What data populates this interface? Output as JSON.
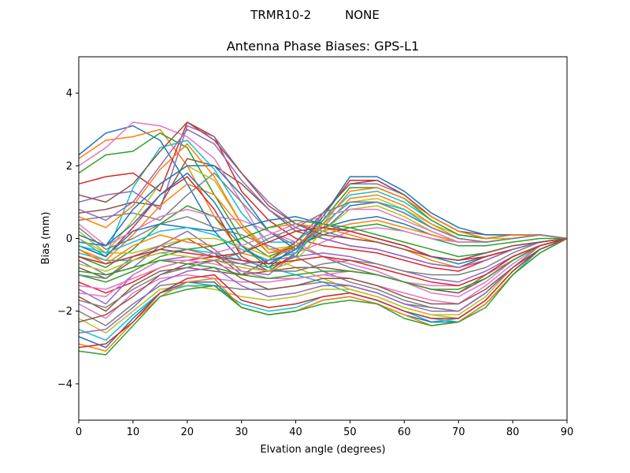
{
  "figure": {
    "suptitle": "TRMR10-2         NONE"
  },
  "chart_data": {
    "type": "line",
    "title": "Antenna Phase Biases: GPS-L1",
    "xlabel": "Elvation angle (degrees)",
    "ylabel": "Bias (mm)",
    "xlim": [
      0,
      90
    ],
    "ylim": [
      -5,
      5
    ],
    "xticks": [
      0,
      10,
      20,
      30,
      40,
      50,
      60,
      70,
      80,
      90
    ],
    "yticks": [
      -4,
      -2,
      0,
      2,
      4
    ],
    "grid": false,
    "legend": "none",
    "x": [
      0,
      5,
      10,
      15,
      20,
      25,
      30,
      35,
      40,
      45,
      50,
      55,
      60,
      65,
      70,
      75,
      80,
      85,
      90
    ],
    "colors": [
      "#1f77b4",
      "#ff7f0e",
      "#2ca02c",
      "#d62728",
      "#9467bd",
      "#8c564b",
      "#e377c2",
      "#7f7f7f",
      "#bcbd22",
      "#17becf"
    ],
    "series": [
      {
        "values": [
          2.3,
          2.9,
          3.1,
          2.7,
          1.5,
          0.2,
          -0.6,
          -0.8,
          -0.2,
          0.3,
          0.5,
          0.6,
          0.4,
          0.1,
          -0.1,
          -0.1,
          0.0,
          0.1,
          0.0
        ]
      },
      {
        "values": [
          2.2,
          2.7,
          2.8,
          3.0,
          2.0,
          0.6,
          -0.4,
          -0.6,
          -0.2,
          0.2,
          0.4,
          0.5,
          0.3,
          0.1,
          -0.1,
          -0.1,
          0.0,
          0.1,
          0.0
        ]
      },
      {
        "values": [
          1.8,
          2.3,
          2.4,
          2.9,
          2.5,
          1.2,
          0.0,
          -0.5,
          -0.2,
          0.1,
          0.3,
          0.4,
          0.2,
          0.0,
          -0.2,
          -0.2,
          -0.1,
          0.0,
          0.0
        ]
      },
      {
        "values": [
          1.5,
          1.7,
          1.8,
          1.3,
          3.2,
          2.8,
          1.3,
          0.5,
          0.0,
          -0.2,
          -0.3,
          -0.4,
          -0.6,
          -0.8,
          -0.9,
          -0.6,
          -0.3,
          -0.1,
          0.0
        ]
      },
      {
        "values": [
          1.0,
          1.2,
          1.3,
          0.8,
          3.1,
          2.8,
          1.8,
          1.0,
          0.4,
          0.2,
          0.0,
          -0.1,
          -0.3,
          -0.5,
          -0.6,
          -0.4,
          -0.2,
          -0.1,
          0.0
        ]
      },
      {
        "values": [
          0.7,
          0.8,
          1.0,
          0.9,
          2.2,
          2.0,
          1.5,
          0.8,
          0.2,
          0.0,
          -0.2,
          -0.3,
          -0.5,
          -0.7,
          -0.8,
          -0.5,
          -0.3,
          -0.1,
          0.0
        ]
      },
      {
        "values": [
          2.0,
          2.5,
          3.2,
          3.1,
          2.8,
          2.2,
          1.0,
          -0.3,
          -0.4,
          -0.1,
          0.2,
          0.3,
          0.2,
          0.0,
          -0.1,
          -0.1,
          0.0,
          0.1,
          0.0
        ]
      },
      {
        "values": [
          0.5,
          0.6,
          0.7,
          0.5,
          1.2,
          1.8,
          1.0,
          0.2,
          -0.2,
          -0.5,
          -0.8,
          -1.0,
          -1.2,
          -1.4,
          -1.5,
          -1.0,
          -0.5,
          -0.2,
          0.0
        ]
      },
      {
        "values": [
          0.2,
          -0.4,
          0.5,
          1.5,
          2.0,
          1.6,
          0.4,
          -0.3,
          -0.2,
          0.4,
          1.0,
          1.1,
          0.8,
          0.4,
          0.1,
          0.0,
          0.0,
          0.1,
          0.0
        ]
      },
      {
        "values": [
          0.0,
          -0.5,
          1.4,
          2.5,
          2.7,
          1.9,
          0.7,
          -0.1,
          -0.1,
          0.5,
          1.2,
          1.3,
          1.0,
          0.5,
          0.1,
          0.0,
          0.1,
          0.1,
          0.0
        ]
      },
      {
        "values": [
          -0.1,
          -0.2,
          0.8,
          1.5,
          2.0,
          2.0,
          1.2,
          0.2,
          -0.3,
          0.2,
          0.9,
          1.0,
          0.7,
          0.3,
          0.0,
          -0.1,
          0.0,
          0.1,
          0.0
        ]
      },
      {
        "values": [
          -0.3,
          -0.6,
          0.1,
          0.9,
          1.5,
          1.2,
          0.3,
          -0.4,
          -0.3,
          0.3,
          1.1,
          1.2,
          0.9,
          0.4,
          0.0,
          -0.1,
          0.0,
          0.1,
          0.0
        ]
      },
      {
        "values": [
          -0.5,
          -0.8,
          -0.3,
          0.4,
          0.9,
          0.6,
          -0.2,
          -0.8,
          -0.5,
          0.5,
          1.4,
          1.4,
          1.1,
          0.5,
          0.1,
          0.0,
          0.1,
          0.1,
          0.0
        ]
      },
      {
        "values": [
          -0.2,
          -0.5,
          0.3,
          1.2,
          1.7,
          0.8,
          -0.5,
          -0.9,
          -0.4,
          0.6,
          1.6,
          1.6,
          1.2,
          0.6,
          0.2,
          0.0,
          0.1,
          0.1,
          0.0
        ]
      },
      {
        "values": [
          -0.6,
          -1.0,
          -0.8,
          -0.2,
          0.2,
          -0.3,
          -0.9,
          -1.0,
          -0.4,
          0.7,
          1.5,
          1.5,
          1.2,
          0.6,
          0.2,
          0.0,
          0.1,
          0.1,
          0.0
        ]
      },
      {
        "values": [
          -0.8,
          -1.1,
          -0.6,
          -0.3,
          0.0,
          -0.4,
          -1.0,
          -0.6,
          -0.1,
          0.7,
          1.5,
          1.6,
          1.2,
          0.6,
          0.2,
          0.1,
          0.1,
          0.1,
          0.0
        ]
      },
      {
        "values": [
          0.4,
          -0.2,
          0.2,
          0.6,
          0.8,
          0.6,
          0.5,
          0.2,
          -0.1,
          -0.5,
          -0.7,
          -0.9,
          -1.2,
          -1.5,
          -1.6,
          -1.2,
          -0.6,
          -0.2,
          0.0
        ]
      },
      {
        "values": [
          0.3,
          -0.3,
          0.0,
          0.4,
          0.6,
          0.3,
          0.1,
          -0.2,
          -0.5,
          -0.9,
          -1.2,
          -1.4,
          -1.7,
          -1.9,
          -2.0,
          -1.5,
          -0.8,
          -0.2,
          0.0
        ]
      },
      {
        "values": [
          0.0,
          -0.4,
          -0.4,
          -0.2,
          0.0,
          0.0,
          -0.2,
          -0.5,
          -0.8,
          -1.1,
          -1.4,
          -1.6,
          -1.9,
          -2.1,
          -2.2,
          -1.7,
          -0.9,
          -0.3,
          0.0
        ]
      },
      {
        "values": [
          -0.4,
          -0.6,
          -0.6,
          -0.4,
          -0.3,
          -0.4,
          -0.6,
          -0.8,
          -1.0,
          -1.2,
          -1.5,
          -1.7,
          -2.0,
          -2.2,
          -2.3,
          -1.8,
          -1.0,
          -0.3,
          0.0
        ]
      },
      {
        "values": [
          -0.2,
          -0.5,
          0.2,
          0.4,
          0.3,
          0.2,
          0.3,
          0.5,
          0.6,
          0.4,
          0.2,
          0.0,
          -0.2,
          -0.5,
          -0.7,
          -0.5,
          -0.3,
          -0.1,
          0.0
        ]
      },
      {
        "values": [
          -0.3,
          -0.7,
          -0.2,
          0.1,
          -0.1,
          -0.2,
          0.0,
          0.3,
          0.4,
          0.3,
          0.1,
          -0.1,
          -0.3,
          -0.6,
          -0.8,
          -0.6,
          -0.3,
          -0.1,
          0.0
        ]
      },
      {
        "values": [
          -1.0,
          -1.2,
          -0.9,
          -0.5,
          -0.3,
          -0.2,
          0.0,
          0.3,
          0.5,
          0.4,
          0.3,
          0.1,
          -0.1,
          -0.3,
          -0.5,
          -0.4,
          -0.2,
          -0.1,
          0.0
        ]
      },
      {
        "values": [
          -1.2,
          -1.5,
          -1.2,
          -0.8,
          -0.6,
          -0.5,
          -0.4,
          -0.1,
          0.2,
          0.3,
          0.2,
          0.0,
          -0.2,
          -0.5,
          -0.6,
          -0.5,
          -0.3,
          -0.1,
          0.0
        ]
      },
      {
        "values": [
          -1.4,
          -1.8,
          -1.0,
          -0.6,
          -0.5,
          -0.6,
          -0.7,
          -0.6,
          -0.5,
          -0.4,
          -0.5,
          -0.7,
          -0.9,
          -1.1,
          -1.2,
          -0.9,
          -0.5,
          -0.2,
          0.0
        ]
      },
      {
        "values": [
          -1.6,
          -2.0,
          -1.3,
          -0.9,
          -0.8,
          -0.9,
          -1.0,
          -0.9,
          -0.8,
          -0.8,
          -0.9,
          -1.0,
          -1.2,
          -1.4,
          -1.5,
          -1.1,
          -0.6,
          -0.2,
          0.0
        ]
      },
      {
        "values": [
          -1.8,
          -2.2,
          -1.5,
          -1.1,
          -1.0,
          -1.1,
          -1.2,
          -1.2,
          -1.1,
          -1.0,
          -1.1,
          -1.3,
          -1.5,
          -1.7,
          -1.8,
          -1.3,
          -0.7,
          -0.2,
          0.0
        ]
      },
      {
        "values": [
          -2.0,
          -2.4,
          -1.8,
          -1.3,
          -1.2,
          -1.3,
          -1.4,
          -1.4,
          -1.3,
          -1.2,
          -1.3,
          -1.5,
          -1.8,
          -1.9,
          -2.0,
          -1.5,
          -0.8,
          -0.3,
          0.0
        ]
      },
      {
        "values": [
          -2.2,
          -2.6,
          -2.0,
          -1.4,
          -1.3,
          -1.4,
          -1.6,
          -1.7,
          -1.6,
          -1.4,
          -1.4,
          -1.6,
          -1.9,
          -2.1,
          -2.1,
          -1.6,
          -0.8,
          -0.3,
          0.0
        ]
      },
      {
        "values": [
          -2.5,
          -2.8,
          -2.1,
          -1.5,
          -1.3,
          -1.3,
          -1.8,
          -2.0,
          -1.9,
          -1.6,
          -1.5,
          -1.7,
          -2.0,
          -2.3,
          -2.2,
          -1.7,
          -0.9,
          -0.3,
          0.0
        ]
      },
      {
        "values": [
          -2.7,
          -3.0,
          -2.2,
          -1.5,
          -1.2,
          -1.2,
          -1.9,
          -2.1,
          -2.0,
          -1.7,
          -1.6,
          -1.8,
          -2.1,
          -2.3,
          -2.3,
          -1.8,
          -1.0,
          -0.4,
          0.0
        ]
      },
      {
        "values": [
          -2.9,
          -3.1,
          -2.3,
          -1.6,
          -1.2,
          -1.1,
          -1.9,
          -2.1,
          -2.0,
          -1.7,
          -1.6,
          -1.8,
          -2.1,
          -2.4,
          -2.3,
          -1.8,
          -1.0,
          -0.4,
          0.0
        ]
      },
      {
        "values": [
          -3.1,
          -3.2,
          -2.4,
          -1.6,
          -1.4,
          -1.3,
          -1.9,
          -2.1,
          -2.0,
          -1.8,
          -1.7,
          -1.8,
          -2.2,
          -2.4,
          -2.3,
          -1.9,
          -1.0,
          -0.4,
          0.0
        ]
      },
      {
        "values": [
          -3.0,
          -2.9,
          -2.3,
          -1.5,
          -1.1,
          -1.0,
          -1.7,
          -1.9,
          -1.8,
          -1.6,
          -1.5,
          -1.7,
          -2.0,
          -2.2,
          -2.2,
          -1.7,
          -0.9,
          -0.3,
          0.0
        ]
      },
      {
        "values": [
          -2.6,
          -2.5,
          -1.9,
          -1.2,
          -0.9,
          -0.8,
          -1.3,
          -1.6,
          -1.5,
          -1.3,
          -1.3,
          -1.5,
          -1.8,
          -2.0,
          -2.0,
          -1.5,
          -0.8,
          -0.3,
          0.0
        ]
      },
      {
        "values": [
          -2.3,
          -2.1,
          -1.6,
          -1.0,
          -0.7,
          -0.6,
          -1.1,
          -1.4,
          -1.3,
          -1.1,
          -1.1,
          -1.3,
          -1.6,
          -1.8,
          -1.8,
          -1.4,
          -0.8,
          -0.3,
          0.0
        ]
      },
      {
        "values": [
          -1.5,
          -1.6,
          -1.0,
          -0.6,
          -0.6,
          -0.7,
          -0.9,
          -1.1,
          -1.1,
          -1.0,
          -0.9,
          -1.0,
          -1.2,
          -1.3,
          -1.3,
          -1.0,
          -0.6,
          -0.2,
          0.0
        ]
      },
      {
        "values": [
          -1.0,
          -1.1,
          -0.5,
          -0.2,
          -0.3,
          -0.5,
          -0.7,
          -0.9,
          -0.9,
          -0.7,
          -0.6,
          -0.7,
          -0.9,
          -1.0,
          -1.0,
          -0.8,
          -0.4,
          -0.1,
          0.0
        ]
      },
      {
        "values": [
          -0.7,
          -0.9,
          -0.6,
          -0.4,
          -0.5,
          -0.6,
          -0.8,
          -0.9,
          -0.6,
          0.2,
          0.8,
          0.9,
          0.6,
          0.2,
          -0.1,
          -0.1,
          0.0,
          0.1,
          0.0
        ]
      },
      {
        "values": [
          -0.2,
          -0.4,
          -0.1,
          0.2,
          0.3,
          0.1,
          -0.3,
          -0.6,
          -0.4,
          0.4,
          1.0,
          1.0,
          0.8,
          0.3,
          0.0,
          -0.1,
          0.0,
          0.1,
          0.0
        ]
      },
      {
        "values": [
          0.1,
          -0.2,
          0.4,
          1.2,
          1.8,
          1.0,
          -0.2,
          -0.7,
          -0.3,
          0.6,
          1.7,
          1.7,
          1.3,
          0.7,
          0.3,
          0.1,
          0.1,
          0.1,
          0.0
        ]
      },
      {
        "values": [
          0.6,
          0.3,
          0.9,
          1.9,
          2.6,
          1.7,
          0.4,
          -0.4,
          -0.2,
          0.4,
          1.3,
          1.4,
          1.1,
          0.6,
          0.2,
          0.0,
          0.1,
          0.1,
          0.0
        ]
      },
      {
        "values": [
          -0.9,
          -1.0,
          -0.8,
          -0.6,
          -0.7,
          -0.8,
          -1.0,
          -1.1,
          -1.0,
          -0.9,
          -0.9,
          -1.0,
          -1.2,
          -1.4,
          -1.4,
          -1.1,
          -0.6,
          -0.2,
          0.0
        ]
      },
      {
        "values": [
          -0.5,
          -0.7,
          -0.5,
          -0.3,
          -0.4,
          -0.5,
          -0.6,
          -0.7,
          -0.6,
          -0.5,
          -0.6,
          -0.8,
          -1.0,
          -1.2,
          -1.3,
          -1.0,
          -0.5,
          -0.2,
          0.0
        ]
      },
      {
        "values": [
          0.8,
          0.5,
          1.0,
          2.0,
          3.0,
          2.6,
          1.6,
          0.8,
          0.3,
          0.0,
          -0.2,
          -0.3,
          -0.5,
          -0.7,
          -0.8,
          -0.6,
          -0.3,
          -0.1,
          0.0
        ]
      },
      {
        "values": [
          1.2,
          1.0,
          1.5,
          2.4,
          3.2,
          2.7,
          1.8,
          0.9,
          0.4,
          0.1,
          0.0,
          -0.1,
          -0.3,
          -0.5,
          -0.6,
          -0.4,
          -0.2,
          -0.1,
          0.0
        ]
      },
      {
        "values": [
          -1.3,
          -1.4,
          -1.1,
          -0.8,
          -0.6,
          -0.4,
          -0.2,
          0.1,
          0.4,
          0.6,
          0.8,
          0.8,
          0.5,
          0.2,
          -0.1,
          -0.1,
          0.0,
          0.1,
          0.0
        ]
      },
      {
        "values": [
          -1.7,
          -1.9,
          -1.4,
          -1.0,
          -0.8,
          -0.6,
          -0.4,
          0.0,
          0.3,
          0.7,
          1.0,
          1.0,
          0.7,
          0.3,
          0.0,
          -0.1,
          0.0,
          0.1,
          0.0
        ]
      }
    ]
  }
}
